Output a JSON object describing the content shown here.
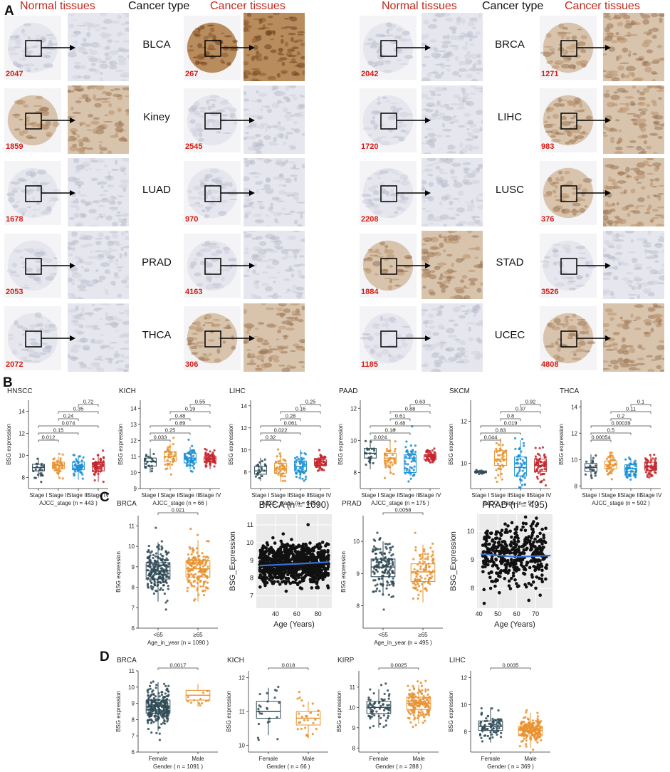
{
  "panelA": {
    "letter": "A",
    "headers": {
      "normal": "Normal tissues",
      "cancer_type": "Cancer type",
      "cancer": "Cancer tissues"
    },
    "left": [
      {
        "type": "BLCA",
        "normal_id": "2047",
        "cancer_id": "267",
        "normal_stain": "light",
        "cancer_stain": "strong"
      },
      {
        "type": "Kiney",
        "normal_id": "1859",
        "cancer_id": "2545",
        "normal_stain": "moderate",
        "cancer_stain": "light"
      },
      {
        "type": "LUAD",
        "normal_id": "1678",
        "cancer_id": "970",
        "normal_stain": "light",
        "cancer_stain": "light"
      },
      {
        "type": "PRAD",
        "normal_id": "2053",
        "cancer_id": "4163",
        "normal_stain": "light",
        "cancer_stain": "light"
      },
      {
        "type": "THCA",
        "normal_id": "2072",
        "cancer_id": "306",
        "normal_stain": "light",
        "cancer_stain": "moderate"
      }
    ],
    "right": [
      {
        "type": "BRCA",
        "normal_id": "2042",
        "cancer_id": "1271",
        "normal_stain": "light",
        "cancer_stain": "moderate"
      },
      {
        "type": "LIHC",
        "normal_id": "1720",
        "cancer_id": "983",
        "normal_stain": "light",
        "cancer_stain": "moderate"
      },
      {
        "type": "LUSC",
        "normal_id": "2208",
        "cancer_id": "376",
        "normal_stain": "light",
        "cancer_stain": "moderate"
      },
      {
        "type": "STAD",
        "normal_id": "1884",
        "cancer_id": "3526",
        "normal_stain": "moderate",
        "cancer_stain": "light"
      },
      {
        "type": "UCEC",
        "normal_id": "1185",
        "cancer_id": "4808",
        "normal_stain": "light",
        "cancer_stain": "moderate"
      }
    ]
  },
  "panelB": {
    "letter": "B",
    "ylabel": "BSG expression",
    "plots": [
      {
        "title": "HNSCC",
        "xlabel": "AJCC_stage (n = 443 )",
        "ylim": [
          7,
          15
        ],
        "yticks": [
          8,
          10,
          12,
          14
        ],
        "groups": [
          "Stage I",
          "Stage II",
          "Stage III",
          "Stage IV"
        ],
        "medians": [
          8.9,
          9.1,
          9.05,
          9.0
        ],
        "q1": [
          8.6,
          8.8,
          8.7,
          8.6
        ],
        "q3": [
          9.2,
          9.4,
          9.4,
          9.35
        ],
        "wlo": [
          8.0,
          8.1,
          7.8,
          7.6
        ],
        "whi": [
          9.8,
          9.9,
          10.0,
          10.1
        ],
        "pvalues": [
          "0.012",
          "0.15",
          "0.074",
          "0.24",
          "0.35",
          "0.72"
        ]
      },
      {
        "title": "KICH",
        "xlabel": "AJCC_stage (n = 66 )",
        "ylim": [
          9,
          14.5
        ],
        "yticks": [
          9,
          10,
          11,
          12,
          13,
          14
        ],
        "groups": [
          "Stage I",
          "Stage II",
          "Stage III",
          "Stage IV"
        ],
        "medians": [
          10.7,
          11.0,
          10.9,
          10.9
        ],
        "q1": [
          10.4,
          10.7,
          10.6,
          10.7
        ],
        "q3": [
          10.9,
          11.3,
          11.2,
          11.0
        ],
        "wlo": [
          10.0,
          10.2,
          10.2,
          10.2
        ],
        "whi": [
          11.5,
          11.8,
          11.6,
          11.1
        ],
        "pvalues": [
          "0.033",
          "0.25",
          "0.89",
          "0.48",
          "0.19",
          "0.55"
        ]
      },
      {
        "title": "LIHC",
        "xlabel": "AJCC_stage (n = 345 )",
        "ylim": [
          6.5,
          14.5
        ],
        "yticks": [
          8,
          10,
          12,
          14
        ],
        "groups": [
          "Stage I",
          "Stage II",
          "Stage III",
          "Stage IV"
        ],
        "medians": [
          8.1,
          8.3,
          8.5,
          8.9
        ],
        "q1": [
          7.8,
          7.9,
          8.1,
          8.6
        ],
        "q3": [
          8.5,
          8.8,
          9.0,
          9.1
        ],
        "wlo": [
          7.2,
          7.1,
          7.3,
          8.3
        ],
        "whi": [
          9.3,
          9.8,
          10.0,
          9.3
        ],
        "pvalues": [
          "0.32",
          "0.022",
          "0.061",
          "0.28",
          "0.16",
          "0.25"
        ]
      },
      {
        "title": "PAAD",
        "xlabel": "AJCC_stage (n = 175 )",
        "ylim": [
          7,
          12.5
        ],
        "yticks": [
          8,
          10,
          12
        ],
        "groups": [
          "Stage I",
          "Stage II",
          "Stage III",
          "Stage IV"
        ],
        "medians": [
          9.2,
          8.9,
          8.9,
          9.0
        ],
        "q1": [
          8.9,
          8.6,
          8.0,
          8.8
        ],
        "q3": [
          9.5,
          9.2,
          9.1,
          9.1
        ],
        "wlo": [
          8.2,
          7.9,
          7.8,
          8.6
        ],
        "whi": [
          10.0,
          9.9,
          9.2,
          9.3
        ],
        "pvalues": [
          "0.024",
          "0.16",
          "0.48",
          "0.61",
          "0.88",
          "0.63"
        ]
      },
      {
        "title": "SKCM",
        "xlabel": "AJCC_stage (n = 97 )",
        "ylim": [
          8.8,
          13
        ],
        "yticks": [
          10,
          12
        ],
        "groups": [
          "Stage I",
          "Stage II",
          "Stage III",
          "Stage IV"
        ],
        "medians": [
          9.6,
          10.2,
          9.8,
          9.9
        ],
        "q1": [
          9.55,
          9.9,
          9.4,
          9.6
        ],
        "q3": [
          9.6,
          10.6,
          10.3,
          10.2
        ],
        "wlo": [
          9.5,
          9.3,
          9.0,
          9.4
        ],
        "whi": [
          9.6,
          11.2,
          11.1,
          10.4
        ],
        "pvalues": [
          "0.044",
          "0.83",
          "0.019",
          "0.8",
          "0.37",
          "0.92"
        ]
      },
      {
        "title": "THCA",
        "xlabel": "AJCC_stage (n = 502 )",
        "ylim": [
          7.8,
          14.5
        ],
        "yticks": [
          8,
          10,
          12,
          14
        ],
        "groups": [
          "Stage I",
          "Stage II",
          "Stage III",
          "Stage IV"
        ],
        "medians": [
          9.4,
          9.6,
          9.3,
          9.5
        ],
        "q1": [
          9.1,
          9.3,
          9.1,
          9.2
        ],
        "q3": [
          9.7,
          9.9,
          9.6,
          9.8
        ],
        "wlo": [
          8.6,
          8.9,
          8.7,
          8.8
        ],
        "whi": [
          10.4,
          10.4,
          10.1,
          10.3
        ],
        "pvalues": [
          "0.00054",
          "0.5",
          "0.00039",
          "0.2",
          "0.11",
          "0.1"
        ]
      }
    ]
  },
  "panelC": {
    "letter": "C",
    "box1": {
      "title": "BRCA",
      "ylabel": "BSG expression",
      "xlabel": "Age_in_year (n = 1090 )",
      "groups": [
        "<65",
        "≥65"
      ],
      "pvalue": "0.021",
      "ylim": [
        6,
        11.5
      ],
      "yticks": [
        6,
        7,
        8,
        9,
        10,
        11
      ],
      "medians": [
        8.8,
        8.9
      ],
      "q1": [
        8.4,
        8.5
      ],
      "q3": [
        9.2,
        9.3
      ],
      "wlo": [
        7.3,
        7.3
      ],
      "whi": [
        10.2,
        10.3
      ]
    },
    "scatter1": {
      "title": "BRCA (n = 1090)",
      "xlabel": "Age (Years)",
      "ylabel": "BSG_Expression",
      "xlim": [
        22,
        93
      ],
      "ylim": [
        6.3,
        11.6
      ],
      "xticks": [
        40,
        60,
        80
      ],
      "yticks": [
        7,
        8,
        9,
        10,
        11
      ],
      "trend": [
        [
          25,
          8.7
        ],
        [
          60,
          8.8
        ],
        [
          90,
          8.9
        ]
      ]
    },
    "box2": {
      "title": "PRAD",
      "ylabel": "BSG expression",
      "xlabel": "Age_in_year (n = 495 )",
      "groups": [
        "<65",
        "≥65"
      ],
      "pvalue": "0.0058",
      "ylim": [
        7.3,
        10.8
      ],
      "yticks": [
        8,
        9,
        10
      ],
      "medians": [
        9.2,
        9.05
      ],
      "q1": [
        8.9,
        8.75
      ],
      "q3": [
        9.45,
        9.3
      ],
      "wlo": [
        8.3,
        8.1
      ],
      "whi": [
        10.0,
        9.9
      ]
    },
    "scatter2": {
      "title": "PRAD (n = 495)",
      "xlabel": "Age (Years)",
      "ylabel": "BSG_Expression",
      "xlim": [
        39,
        79
      ],
      "ylim": [
        7.3,
        10.6
      ],
      "xticks": [
        40,
        50,
        60,
        70
      ],
      "yticks": [
        8,
        9,
        10
      ],
      "trend": [
        [
          41,
          9.2
        ],
        [
          60,
          9.1
        ],
        [
          78,
          9.15
        ]
      ]
    }
  },
  "panelD": {
    "letter": "D",
    "ylabel": "BSG expression",
    "plots": [
      {
        "title": "BRCA",
        "xlabel": "Gender ( n = 1091 )",
        "groups": [
          "Female",
          "Male"
        ],
        "pvalue": "0.0017",
        "ylim": [
          6,
          11
        ],
        "yticks": [
          6,
          7,
          8,
          9,
          10,
          11
        ],
        "medians": [
          8.8,
          9.5
        ],
        "q1": [
          8.4,
          9.2
        ],
        "q3": [
          9.2,
          9.8
        ],
        "wlo": [
          7.3,
          8.8
        ],
        "whi": [
          10.3,
          10.2
        ]
      },
      {
        "title": "KICH",
        "xlabel": "Gender ( n = 66 )",
        "groups": [
          "Female",
          "Male"
        ],
        "pvalue": "0.018",
        "ylim": [
          9.8,
          12.2
        ],
        "yticks": [
          10,
          11,
          12
        ],
        "medians": [
          11.0,
          10.8
        ],
        "q1": [
          10.8,
          10.6
        ],
        "q3": [
          11.3,
          11.0
        ],
        "wlo": [
          10.3,
          10.2
        ],
        "whi": [
          11.7,
          11.3
        ]
      },
      {
        "title": "KIRP",
        "xlabel": "Gender ( n = 288 )",
        "groups": [
          "Female",
          "Male"
        ],
        "pvalue": "0.0025",
        "ylim": [
          7.8,
          11.8
        ],
        "yticks": [
          8,
          9,
          10,
          11
        ],
        "medians": [
          10.0,
          10.2
        ],
        "q1": [
          9.7,
          9.9
        ],
        "q3": [
          10.3,
          10.5
        ],
        "wlo": [
          9.0,
          9.2
        ],
        "whi": [
          10.9,
          11.1
        ]
      },
      {
        "title": "LIHC",
        "xlabel": "Gender ( n = 369 )",
        "groups": [
          "Female",
          "Male"
        ],
        "pvalue": "0.0035",
        "ylim": [
          6.5,
          12.5
        ],
        "yticks": [
          8,
          10,
          12
        ],
        "medians": [
          8.4,
          8.1
        ],
        "q1": [
          8.1,
          7.7
        ],
        "q3": [
          8.8,
          8.4
        ],
        "wlo": [
          7.2,
          6.8
        ],
        "whi": [
          9.8,
          9.4
        ]
      }
    ]
  },
  "colors": {
    "stage": [
      "#2f4a56",
      "#e8912e",
      "#1b8fd4",
      "#c3272d"
    ],
    "two": [
      "#2f4a56",
      "#e8912e"
    ],
    "trend": "#3b6fd8",
    "header_red": "#c0281c",
    "id_red": "#d41c14"
  }
}
